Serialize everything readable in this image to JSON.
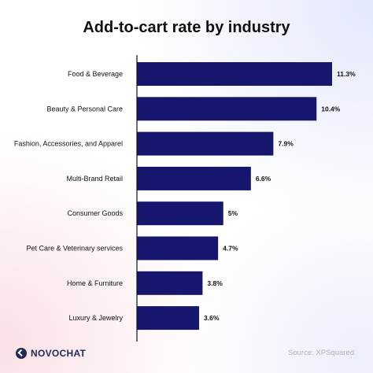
{
  "brand": {
    "name": "NOVOCHAT",
    "logo_icon": "novochat-logo-icon"
  },
  "source": "Source: XPSquared",
  "colors": {
    "bar": "#16166e",
    "axis": "#111111"
  },
  "chart_data": {
    "type": "bar",
    "orientation": "horizontal",
    "title": "Add-to-cart rate by industry",
    "categories": [
      "Food & Beverage",
      "Beauty & Personal Care",
      "Fashion, Accessories, and Apparel",
      "Multi-Brand Retail",
      "Consumer Goods",
      "Pet Care & Veterinary services",
      "Home & Furniture",
      "Luxury & Jewelry"
    ],
    "values": [
      11.3,
      10.4,
      7.9,
      6.6,
      5,
      4.7,
      3.8,
      3.6
    ],
    "value_labels": [
      "11.3%",
      "10.4%",
      "7.9%",
      "6.6%",
      "5%",
      "4.7%",
      "3.8%",
      "3.6%"
    ],
    "xlim": [
      0,
      11.3
    ],
    "grid": false,
    "legend": "none"
  }
}
